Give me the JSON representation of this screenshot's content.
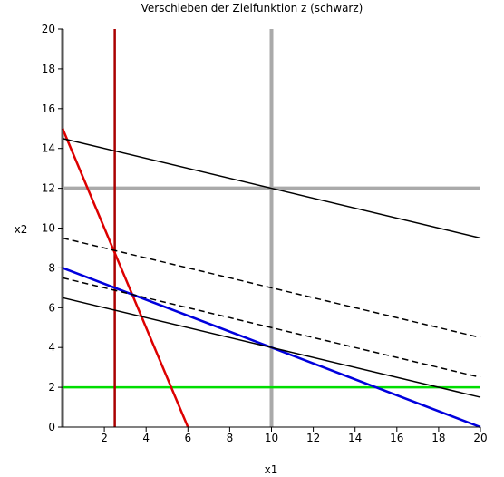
{
  "chart_data": {
    "type": "line",
    "title": "Verschieben der Zielfunktion z (schwarz)",
    "xlabel": "x1",
    "ylabel": "x2",
    "xlim": [
      0,
      20
    ],
    "ylim": [
      0,
      20
    ],
    "xticks": [
      2,
      4,
      6,
      8,
      10,
      12,
      14,
      16,
      18,
      20
    ],
    "yticks": [
      0,
      2,
      4,
      6,
      8,
      10,
      12,
      14,
      16,
      18,
      20
    ],
    "grid": false,
    "series": [
      {
        "color": "#aaaaaa",
        "style": "solid",
        "x": [
          10,
          10
        ],
        "y": [
          0,
          20
        ]
      },
      {
        "color": "#aaaaaa",
        "style": "solid",
        "x": [
          0,
          20
        ],
        "y": [
          12,
          12
        ]
      },
      {
        "color": "#aaaaaa",
        "style": "solid",
        "x": [
          0,
          0
        ],
        "y": [
          0,
          20
        ]
      },
      {
        "color": "#00dd00",
        "style": "solid",
        "x": [
          0,
          20
        ],
        "y": [
          2,
          2
        ]
      },
      {
        "color": "#aa0000",
        "style": "solid",
        "x": [
          2.5,
          2.5
        ],
        "y": [
          0,
          20
        ]
      },
      {
        "color": "#dd0000",
        "style": "solid",
        "x": [
          0,
          6
        ],
        "y": [
          15,
          0
        ]
      },
      {
        "color": "#0000dd",
        "style": "solid",
        "x": [
          0,
          20
        ],
        "y": [
          8,
          0
        ]
      },
      {
        "color": "#000000",
        "style": "solid",
        "x": [
          0,
          20
        ],
        "y": [
          14.5,
          9.5
        ]
      },
      {
        "color": "#000000",
        "style": "dashed",
        "x": [
          0,
          20
        ],
        "y": [
          9.5,
          4.5
        ]
      },
      {
        "color": "#000000",
        "style": "dashed",
        "x": [
          0,
          20
        ],
        "y": [
          7.5,
          2.5
        ]
      },
      {
        "color": "#000000",
        "style": "solid",
        "x": [
          0,
          20
        ],
        "y": [
          6.5,
          1.5
        ]
      }
    ]
  }
}
